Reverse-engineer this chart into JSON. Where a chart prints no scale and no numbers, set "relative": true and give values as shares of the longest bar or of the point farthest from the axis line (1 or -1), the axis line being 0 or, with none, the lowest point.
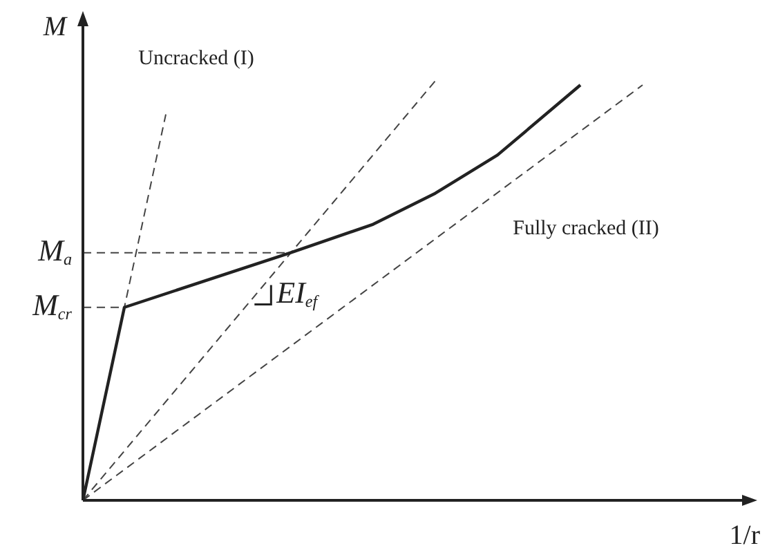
{
  "chart_data": {
    "type": "line",
    "relative": true,
    "xlabel": "1/r",
    "ylabel": "M",
    "marker": "none",
    "categories": [
      null,
      null,
      null,
      null,
      null,
      null,
      null,
      null,
      null,
      null,
      null,
      null,
      null,
      null,
      null,
      null,
      null,
      null,
      null,
      null,
      null,
      null,
      null,
      null,
      null,
      null,
      null,
      null,
      null,
      null,
      null,
      null,
      null
    ],
    "series": [
      {
        "color": "#222222",
        "line_style": "solid",
        "values": [
          0,
          null,
          0.46,
          null,
          null,
          null,
          null,
          null,
          null,
          null,
          0.59,
          null,
          null,
          null,
          0.658,
          null,
          null,
          0.732,
          null,
          null,
          0.823,
          null,
          null,
          null,
          0.99,
          null,
          null,
          null,
          null,
          null,
          null,
          null,
          null
        ]
      },
      {
        "name": "Uncracked (I)",
        "color": "#444444",
        "line_style": "dashed",
        "values": [
          0,
          null,
          null,
          null,
          0.92,
          null,
          null,
          null,
          null,
          null,
          null,
          null,
          null,
          null,
          null,
          null,
          null,
          null,
          null,
          null,
          null,
          null,
          null,
          null,
          null,
          null,
          null,
          null,
          null,
          null,
          null,
          null,
          null
        ]
      },
      {
        "color": "#444444",
        "line_style": "dashed",
        "values": [
          0,
          null,
          null,
          null,
          null,
          null,
          null,
          null,
          null,
          null,
          null,
          null,
          null,
          null,
          null,
          null,
          null,
          1,
          null,
          null,
          null,
          null,
          null,
          null,
          null,
          null,
          null,
          null,
          null,
          null,
          null,
          null,
          null
        ]
      },
      {
        "name": "Fully cracked (II)",
        "color": "#444444",
        "line_style": "dashed",
        "values": [
          0,
          null,
          null,
          null,
          null,
          null,
          null,
          null,
          null,
          null,
          null,
          null,
          null,
          null,
          null,
          null,
          null,
          null,
          null,
          null,
          null,
          null,
          null,
          null,
          null,
          null,
          null,
          0.99,
          null,
          null,
          null,
          null,
          null
        ]
      },
      {
        "name": "M$_{a}$",
        "color": "#444444",
        "line_style": "dashed",
        "values": [
          0.59,
          null,
          null,
          null,
          null,
          null,
          null,
          null,
          null,
          null,
          0.59,
          null,
          null,
          null,
          null,
          null,
          null,
          null,
          null,
          null,
          null,
          null,
          null,
          null,
          null,
          null,
          null,
          null,
          null,
          null,
          null,
          null,
          null
        ]
      },
      {
        "name": "M$_{cr}$",
        "color": "#444444",
        "line_style": "dashed",
        "values": [
          0.46,
          null,
          0.46,
          null,
          null,
          null,
          null,
          null,
          null,
          null,
          null,
          null,
          null,
          null,
          null,
          null,
          null,
          null,
          null,
          null,
          null,
          null,
          null,
          null,
          null,
          null,
          null,
          null,
          null,
          null,
          null,
          null,
          null
        ]
      }
    ],
    "annotations": [
      "EI$_{ef}$"
    ]
  }
}
